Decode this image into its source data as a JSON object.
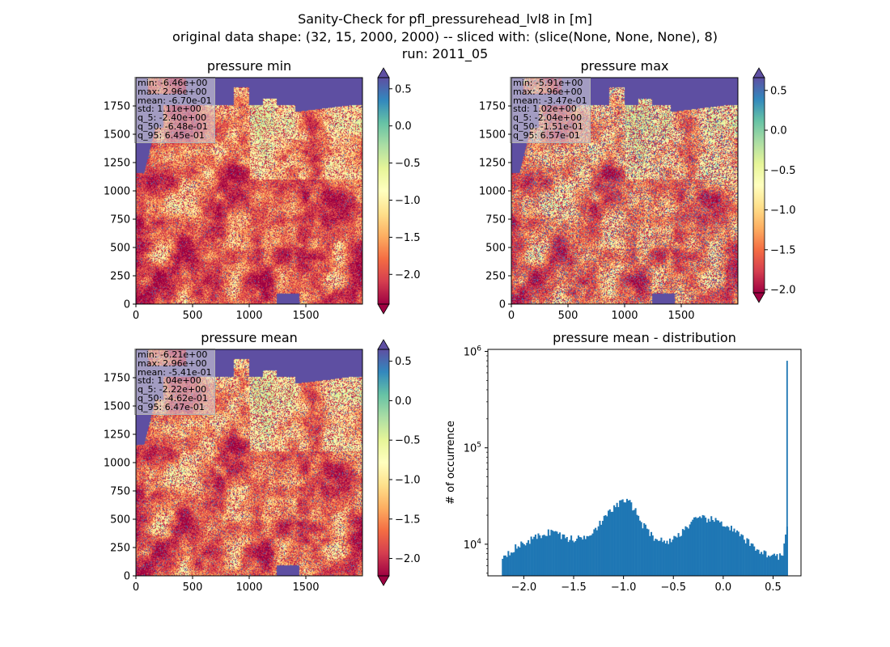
{
  "figure": {
    "title_lines": [
      "Sanity-Check for pfl_pressurehead_lvl8 in [m]",
      "original data shape: (32, 15, 2000, 2000) -- sliced with: (slice(None, None, None), 8)",
      "run: 2011_05"
    ]
  },
  "colormap": "Spectral",
  "colors": {
    "water": "#5e4fa2",
    "histogram_bar": "#1f77b4"
  },
  "panels": [
    {
      "title": "pressure min",
      "x_ticks": [
        "0",
        "500",
        "1000",
        "1500"
      ],
      "y_ticks": [
        "0",
        "250",
        "500",
        "750",
        "1000",
        "1250",
        "1500",
        "1750"
      ],
      "stats": [
        "min: -6.46e+00",
        "max: 2.96e+00",
        "mean: -6.70e-01",
        "std: 1.11e+00",
        "q_5: -2.40e+00",
        "q_50: -6.48e-01",
        "q_95: 6.45e-01"
      ],
      "colorbar_ticks": [
        "0.5",
        "0.0",
        "−0.5",
        "−1.0",
        "−1.5",
        "−2.0"
      ],
      "colorbar_range": [
        -2.4,
        0.65
      ]
    },
    {
      "title": "pressure max",
      "x_ticks": [
        "0",
        "500",
        "1000",
        "1500"
      ],
      "y_ticks": [
        "0",
        "250",
        "500",
        "750",
        "1000",
        "1250",
        "1500",
        "1750"
      ],
      "stats": [
        "min: -5.91e+00",
        "max: 2.96e+00",
        "mean: -3.47e-01",
        "std: 1.02e+00",
        "q_5: -2.04e+00",
        "q_50: -1.51e-01",
        "q_95: 6.57e-01"
      ],
      "colorbar_ticks": [
        "0.5",
        "0.0",
        "−0.5",
        "−1.0",
        "−1.5",
        "−2.0"
      ],
      "colorbar_range": [
        -2.04,
        0.66
      ]
    },
    {
      "title": "pressure mean",
      "x_ticks": [
        "0",
        "500",
        "1000",
        "1500"
      ],
      "y_ticks": [
        "0",
        "250",
        "500",
        "750",
        "1000",
        "1250",
        "1500",
        "1750"
      ],
      "stats": [
        "min: -6.21e+00",
        "max: 2.96e+00",
        "mean: -5.41e-01",
        "std: 1.04e+00",
        "q_5: -2.22e+00",
        "q_50: -4.62e-01",
        "q_95: 6.47e-01"
      ],
      "colorbar_ticks": [
        "0.5",
        "0.0",
        "−0.5",
        "−1.0",
        "−1.5",
        "−2.0"
      ],
      "colorbar_range": [
        -2.22,
        0.65
      ]
    }
  ],
  "chart_data": {
    "type": "bar",
    "title": "pressure mean - distribution",
    "xlabel": "",
    "ylabel": "# of occurrence",
    "yscale": "log",
    "xlim": [
      -2.36,
      0.78
    ],
    "ylim": [
      4700,
      1050000
    ],
    "x_ticks": [
      "−2.0",
      "−1.5",
      "−1.0",
      "−0.5",
      "0.0",
      "0.5"
    ],
    "y_ticks": [
      "10^4",
      "10^5",
      "10^6"
    ],
    "bin_range": [
      -2.22,
      0.647
    ],
    "control_points": [
      [
        -2.22,
        7400
      ],
      [
        -2.1,
        9000
      ],
      [
        -2.0,
        10200
      ],
      [
        -1.9,
        11500
      ],
      [
        -1.8,
        12800
      ],
      [
        -1.7,
        13800
      ],
      [
        -1.6,
        11800
      ],
      [
        -1.5,
        11200
      ],
      [
        -1.4,
        11800
      ],
      [
        -1.3,
        14000
      ],
      [
        -1.2,
        18000
      ],
      [
        -1.1,
        24000
      ],
      [
        -1.0,
        28500
      ],
      [
        -0.95,
        27500
      ],
      [
        -0.9,
        24000
      ],
      [
        -0.8,
        15500
      ],
      [
        -0.7,
        12000
      ],
      [
        -0.6,
        10600
      ],
      [
        -0.5,
        11200
      ],
      [
        -0.4,
        14000
      ],
      [
        -0.3,
        17500
      ],
      [
        -0.2,
        18500
      ],
      [
        -0.1,
        17800
      ],
      [
        0.0,
        16500
      ],
      [
        0.1,
        14000
      ],
      [
        0.2,
        11500
      ],
      [
        0.3,
        9500
      ],
      [
        0.4,
        8200
      ],
      [
        0.5,
        7500
      ],
      [
        0.6,
        7600
      ],
      [
        0.63,
        14000
      ]
    ],
    "spike": {
      "x": 0.64,
      "value": 800000
    }
  }
}
